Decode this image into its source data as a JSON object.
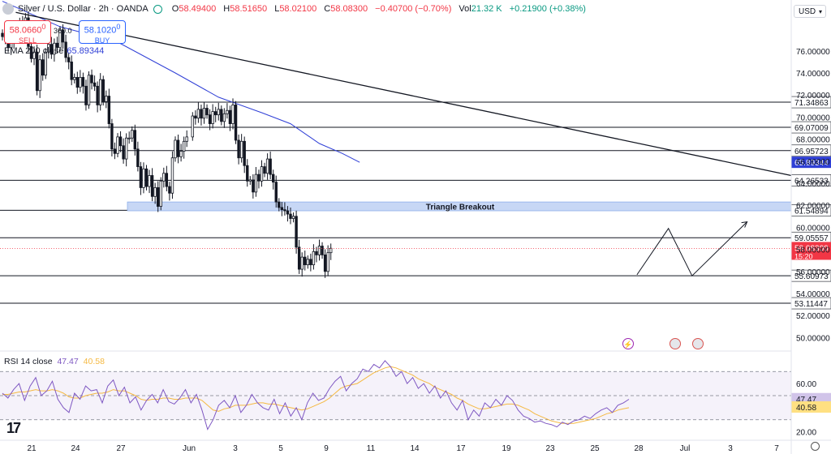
{
  "header": {
    "symbol": "Silver / U.S. Dollar · 2h · OANDA",
    "open_label": "O",
    "open": "58.49400",
    "high_label": "H",
    "high": "58.51650",
    "low_label": "L",
    "low": "58.02100",
    "close_label": "C",
    "close": "58.08300",
    "change": "−0.40700 (−0.70%)",
    "vol_label": "Vol",
    "volume": "21.32 K",
    "vol_change": "+0.21900 (+0.38%)"
  },
  "trade": {
    "sell_price": "58.0660",
    "sell_sup": "0",
    "sell_label": "SELL",
    "spread": "360.0",
    "buy_price": "58.1020",
    "buy_sup": "0",
    "buy_label": "BUY"
  },
  "ema_legend": {
    "label": "EMA 200 close",
    "value": "65.89344"
  },
  "rsi_legend": {
    "label": "RSI 14 close",
    "value": "47.47",
    "value2": "40.58"
  },
  "currency": "USD",
  "colors": {
    "up": "#089981",
    "down": "#f23645",
    "candle_body_up": "#ffffff",
    "candle_body_down": "#131722",
    "ema": "#2f3fd6",
    "rsi": "#7e57c2",
    "rsi_ma": "#f5b942",
    "zone": "#c7d7f5"
  },
  "chart_data": [
    {
      "type": "candlestick",
      "title": "Silver / U.S. Dollar · 2h · OANDA",
      "ylim": [
        49.0,
        79.0
      ],
      "y_ticks": [
        "76.00000",
        "74.00000",
        "72.00000",
        "70.00000",
        "68.00000",
        "66.00000",
        "64.00000",
        "62.00000",
        "60.00000",
        "58.00000",
        "56.00000",
        "54.00000",
        "52.00000",
        "50.00000"
      ],
      "x_ticks": [
        "21",
        "24",
        "27",
        "Jun",
        "3",
        "5",
        "9",
        "11",
        "14",
        "17",
        "19",
        "23",
        "25",
        "28",
        "Jul",
        "3",
        "7"
      ],
      "horizontal_levels": [
        71.34863,
        69.07009,
        66.95723,
        64.26533,
        61.54894,
        59.05557,
        55.60973,
        53.11447
      ],
      "level_labels": [
        "71.34863",
        "69.07009",
        "66.95723",
        "64.26533",
        "61.54894",
        "59.05557",
        "55.60973",
        "53.11447"
      ],
      "ema200_label": "65.89344",
      "last_price": "58.08300",
      "last_price_countdown": "15:20",
      "zone": {
        "label": "Triangle Breakout",
        "from": 61.5,
        "to": 62.3
      },
      "trendline": {
        "from": [
          0.02,
          79.5
        ],
        "to": [
          1.0,
          64.7
        ]
      },
      "projection_path": [
        [
          54.0,
          55.7
        ],
        [
          56.8,
          59.9
        ],
        [
          58.9,
          55.6
        ],
        [
          63.8,
          60.5
        ]
      ],
      "price_path": [
        [
          0,
          77.3
        ],
        [
          1,
          77.2
        ],
        [
          2,
          76.3
        ],
        [
          3,
          76.7
        ],
        [
          4,
          77.7
        ],
        [
          5,
          77.4
        ],
        [
          6,
          78.5
        ],
        [
          7,
          78.2
        ],
        [
          8,
          79.0
        ],
        [
          9,
          76.4
        ],
        [
          10,
          75.3
        ],
        [
          11,
          75.9
        ],
        [
          12,
          72.4
        ],
        [
          13,
          75.2
        ],
        [
          14,
          73.8
        ],
        [
          15,
          75.9
        ],
        [
          16,
          76.6
        ],
        [
          17,
          75.7
        ],
        [
          18,
          76.7
        ],
        [
          19,
          76.3
        ],
        [
          20,
          77.9
        ],
        [
          21,
          76.8
        ],
        [
          22,
          75.4
        ],
        [
          23,
          75.0
        ],
        [
          24,
          73.4
        ],
        [
          25,
          73.6
        ],
        [
          26,
          72.7
        ],
        [
          27,
          73.6
        ],
        [
          28,
          72.8
        ],
        [
          29,
          71.1
        ],
        [
          30,
          73.8
        ],
        [
          31,
          73.1
        ],
        [
          32,
          72.8
        ],
        [
          33,
          71.1
        ],
        [
          34,
          73.4
        ],
        [
          35,
          71.4
        ],
        [
          36,
          71.9
        ],
        [
          37,
          69.4
        ],
        [
          38,
          67.1
        ],
        [
          39,
          66.7
        ],
        [
          40,
          68.2
        ],
        [
          41,
          67.4
        ],
        [
          42,
          66.2
        ],
        [
          43,
          68.1
        ],
        [
          44,
          68.1
        ],
        [
          45,
          68.8
        ],
        [
          46,
          67.1
        ],
        [
          47,
          65.5
        ],
        [
          48,
          63.6
        ],
        [
          49,
          65.3
        ],
        [
          50,
          63.7
        ],
        [
          51,
          64.7
        ],
        [
          52,
          62.8
        ],
        [
          53,
          63.6
        ],
        [
          54,
          61.9
        ],
        [
          55,
          64.2
        ],
        [
          56,
          64.9
        ],
        [
          57,
          63.7
        ],
        [
          58,
          63.1
        ],
        [
          59,
          66.3
        ],
        [
          60,
          67.9
        ],
        [
          61,
          66.4
        ],
        [
          62,
          66.9
        ],
        [
          63,
          67.8
        ],
        [
          64,
          68.2
        ],
        [
          66,
          70.1
        ],
        [
          67,
          69.9
        ],
        [
          68,
          70.7
        ],
        [
          69,
          69.9
        ],
        [
          70,
          70.8
        ],
        [
          71,
          70.2
        ],
        [
          72,
          69.4
        ],
        [
          73,
          70.5
        ],
        [
          74,
          70.2
        ],
        [
          75,
          70.7
        ],
        [
          76,
          69.6
        ],
        [
          77,
          70.3
        ],
        [
          78,
          70.6
        ],
        [
          79,
          69.4
        ],
        [
          80,
          71.1
        ],
        [
          81,
          67.9
        ],
        [
          82,
          66.3
        ],
        [
          83,
          67.8
        ],
        [
          84,
          65.6
        ],
        [
          85,
          64.2
        ],
        [
          86,
          64.3
        ],
        [
          87,
          63.2
        ],
        [
          88,
          64.8
        ],
        [
          89,
          64.2
        ],
        [
          90,
          65.5
        ],
        [
          91,
          64.9
        ],
        [
          92,
          66.2
        ],
        [
          93,
          64.8
        ],
        [
          94,
          64.1
        ],
        [
          95,
          62.3
        ],
        [
          96,
          61.8
        ],
        [
          97,
          61.6
        ],
        [
          98,
          61.5
        ],
        [
          99,
          61.2
        ],
        [
          100,
          60.8
        ],
        [
          101,
          61.0
        ],
        [
          102,
          58.2
        ],
        [
          103,
          56.2
        ],
        [
          104,
          57.3
        ],
        [
          105,
          56.6
        ],
        [
          106,
          57.1
        ],
        [
          107,
          56.6
        ],
        [
          108,
          57.8
        ],
        [
          109,
          57.5
        ],
        [
          110,
          58.3
        ],
        [
          111,
          57.5
        ],
        [
          112,
          56.0
        ],
        [
          113,
          57.7
        ],
        [
          114,
          58.1
        ]
      ]
    },
    {
      "type": "line",
      "title": "RSI 14 close",
      "ylim": [
        15,
        85
      ],
      "y_ticks": [
        "60.00",
        "40.00",
        "20.00"
      ],
      "bands": [
        70,
        50,
        30
      ],
      "series": [
        {
          "name": "RSI 14",
          "values": [
            52,
            48,
            55,
            60,
            46,
            58,
            65,
            50,
            54,
            62,
            47,
            40,
            36,
            52,
            47,
            58,
            54,
            55,
            44,
            58,
            63,
            50,
            57,
            44,
            49,
            38,
            46,
            51,
            44,
            55,
            45,
            43,
            48,
            55,
            44,
            51,
            38,
            22,
            30,
            42,
            46,
            40,
            50,
            36,
            42,
            51,
            44,
            40,
            38,
            47,
            35,
            44,
            33,
            40,
            30,
            44,
            52,
            46,
            48,
            56,
            62,
            66,
            54,
            60,
            64,
            72,
            70,
            76,
            73,
            79,
            74,
            66,
            70,
            60,
            65,
            56,
            60,
            52,
            58,
            48,
            54,
            44,
            38,
            46,
            30,
            38,
            33,
            44,
            40,
            47,
            42,
            50,
            46,
            38,
            33,
            31,
            28,
            29,
            27,
            26,
            24,
            28,
            26,
            29,
            30,
            33,
            31,
            35,
            38,
            40,
            36,
            42,
            44,
            47
          ]
        },
        {
          "name": "RSI MA",
          "values": [
            51,
            51,
            52,
            53,
            53,
            54,
            55,
            54,
            54,
            55,
            54,
            52,
            49,
            48,
            48,
            50,
            51,
            52,
            52,
            53,
            55,
            54,
            54,
            52,
            50,
            47,
            46,
            47,
            47,
            48,
            48,
            47,
            47,
            48,
            48,
            48,
            46,
            42,
            38,
            37,
            39,
            40,
            42,
            42,
            42,
            43,
            44,
            44,
            43,
            43,
            42,
            41,
            40,
            39,
            38,
            39,
            41,
            43,
            45,
            48,
            52,
            56,
            58,
            59,
            60,
            63,
            66,
            69,
            71,
            73,
            74,
            73,
            71,
            69,
            67,
            64,
            62,
            60,
            57,
            55,
            53,
            51,
            48,
            46,
            43,
            41,
            39,
            39,
            40,
            41,
            42,
            43,
            43,
            42,
            40,
            38,
            35,
            33,
            31,
            29,
            28,
            27,
            27,
            27,
            28,
            29,
            30,
            31,
            33,
            35,
            36,
            38,
            39,
            40
          ]
        }
      ]
    }
  ]
}
